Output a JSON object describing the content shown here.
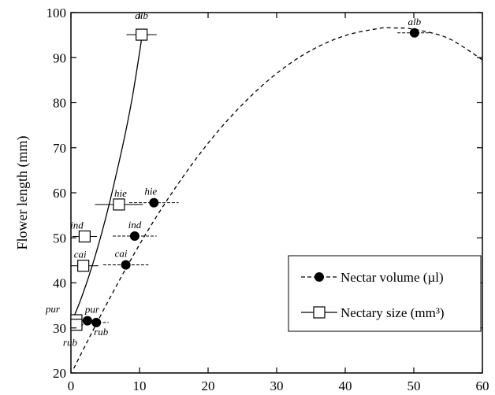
{
  "chart_data": {
    "type": "scatter",
    "ylabel": "Flower length (mm)",
    "xlim": [
      0,
      60
    ],
    "ylim": [
      20,
      100
    ],
    "x_ticks": [
      "0",
      "10",
      "20",
      "30",
      "40",
      "50",
      "60"
    ],
    "y_ticks": [
      "20",
      "30",
      "40",
      "50",
      "60",
      "70",
      "80",
      "90",
      "100"
    ],
    "grid": false,
    "legend_position": "bottom-right",
    "series": [
      {
        "name": "Nectar volume (µl)",
        "marker": "filled-circle",
        "line_style": "dashed",
        "color": "#000000",
        "points": [
          {
            "label": "alb",
            "x": 50.1,
            "y": 95.5,
            "x_err": 2.5
          },
          {
            "label": "hie",
            "x": 12.1,
            "y": 57.8,
            "x_err": 3.6
          },
          {
            "label": "ind",
            "x": 9.3,
            "y": 50.4,
            "x_err": 3.2
          },
          {
            "label": "cai",
            "x": 8.0,
            "y": 44.0,
            "x_err": 3.3
          },
          {
            "label": "pur",
            "x": 2.4,
            "y": 31.6,
            "x_err": 1.0
          },
          {
            "label": "rub",
            "x": 3.7,
            "y": 31.2,
            "x_err": 1.8
          }
        ],
        "fit_curve": [
          [
            0.4,
            21.0
          ],
          [
            5,
            34.7
          ],
          [
            10,
            48.5
          ],
          [
            15,
            60.6
          ],
          [
            20,
            71.0
          ],
          [
            25,
            79.6
          ],
          [
            30,
            86.5
          ],
          [
            35,
            91.6
          ],
          [
            40,
            94.9
          ],
          [
            45,
            96.5
          ],
          [
            47,
            96.6
          ],
          [
            50,
            96.3
          ],
          [
            55,
            94.3
          ],
          [
            60,
            89.5
          ]
        ]
      },
      {
        "name": "Nectary size (mm³)",
        "marker": "open-square",
        "line_style": "solid",
        "color": "#000000",
        "points": [
          {
            "label": "alb",
            "x": 10.3,
            "y": 95.1,
            "x_err": 2.2
          },
          {
            "label": "hie",
            "x": 7.0,
            "y": 57.4,
            "x_err": 3.5
          },
          {
            "label": "ind",
            "x": 2.0,
            "y": 50.3,
            "x_err": 1.8
          },
          {
            "label": "cai",
            "x": 1.8,
            "y": 43.8,
            "x_err": 2.2
          },
          {
            "label": "pur",
            "x": 0.8,
            "y": 31.7,
            "x_err": 1.1
          },
          {
            "label": "rub",
            "x": 0.8,
            "y": 30.7,
            "x_err": 1.0
          }
        ],
        "fit_curve": [
          [
            0,
            31.0
          ],
          [
            1,
            34.6
          ],
          [
            2,
            38.7
          ],
          [
            3,
            43.3
          ],
          [
            4,
            48.4
          ],
          [
            5,
            54.0
          ],
          [
            6,
            60.1
          ],
          [
            7,
            66.7
          ],
          [
            8,
            73.7
          ],
          [
            9,
            81.6
          ],
          [
            10,
            91.1
          ],
          [
            10.5,
            96.3
          ]
        ]
      }
    ]
  }
}
